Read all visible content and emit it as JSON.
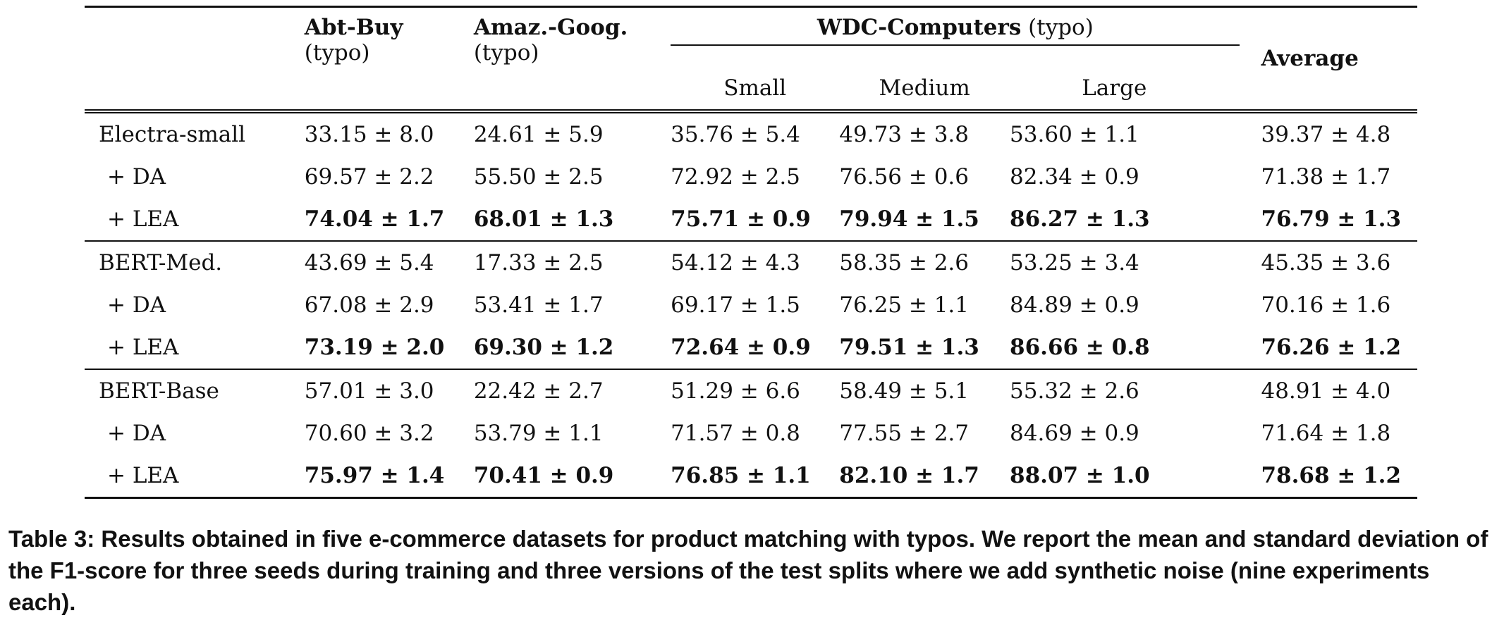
{
  "header": {
    "abt_buy": "Abt-Buy",
    "abt_buy_sub": "(typo)",
    "amaz_goog": "Amaz.-Goog.",
    "amaz_goog_sub": "(typo)",
    "wdc": "WDC-Computers",
    "wdc_sub": "(typo)",
    "small": "Small",
    "medium": "Medium",
    "large": "Large",
    "average": "Average"
  },
  "rows": [
    {
      "model": "Electra-small",
      "abt": "33.15 ± 8.0",
      "amz": "24.61 ± 5.9",
      "small": "35.76 ± 5.4",
      "medium": "49.73 ± 3.8",
      "large": "53.60 ± 1.1",
      "avg": "39.37 ± 4.8"
    },
    {
      "model": "+ DA",
      "abt": "69.57 ± 2.2",
      "amz": "55.50 ± 2.5",
      "small": "72.92 ± 2.5",
      "medium": "76.56 ± 0.6",
      "large": "82.34 ± 0.9",
      "avg": "71.38 ± 1.7"
    },
    {
      "model": "+ LEA",
      "abt": "74.04 ± 1.7",
      "amz": "68.01 ± 1.3",
      "small": "75.71 ± 0.9",
      "medium": "79.94 ± 1.5",
      "large": "86.27 ± 1.3",
      "avg": "76.79 ± 1.3"
    },
    {
      "model": "BERT-Med.",
      "abt": "43.69 ± 5.4",
      "amz": "17.33 ± 2.5",
      "small": "54.12 ± 4.3",
      "medium": "58.35 ± 2.6",
      "large": "53.25 ± 3.4",
      "avg": "45.35 ± 3.6"
    },
    {
      "model": "+ DA",
      "abt": "67.08 ± 2.9",
      "amz": "53.41 ± 1.7",
      "small": "69.17 ± 1.5",
      "medium": "76.25 ± 1.1",
      "large": "84.89 ± 0.9",
      "avg": "70.16 ± 1.6"
    },
    {
      "model": "+ LEA",
      "abt": "73.19 ± 2.0",
      "amz": "69.30 ± 1.2",
      "small": "72.64 ± 0.9",
      "medium": "79.51 ± 1.3",
      "large": "86.66 ± 0.8",
      "avg": "76.26 ± 1.2"
    },
    {
      "model": "BERT-Base",
      "abt": "57.01 ± 3.0",
      "amz": "22.42 ± 2.7",
      "small": "51.29 ± 6.6",
      "medium": "58.49 ± 5.1",
      "large": "55.32 ± 2.6",
      "avg": "48.91 ± 4.0"
    },
    {
      "model": "+ DA",
      "abt": "70.60 ± 3.2",
      "amz": "53.79 ± 1.1",
      "small": "71.57 ± 0.8",
      "medium": "77.55 ± 2.7",
      "large": "84.69 ± 0.9",
      "avg": "71.64 ± 1.8"
    },
    {
      "model": "+ LEA",
      "abt": "75.97 ± 1.4",
      "amz": "70.41 ± 0.9",
      "small": "76.85 ± 1.1",
      "medium": "82.10 ± 1.7",
      "large": "88.07 ± 1.0",
      "avg": "78.68 ± 1.2"
    }
  ],
  "caption": "Table 3: Results obtained in five e-commerce datasets for product matching with typos. We report the mean and standard deviation of the F1-score for three seeds during training and three versions of the test splits where we add synthetic noise (nine experiments each)."
}
